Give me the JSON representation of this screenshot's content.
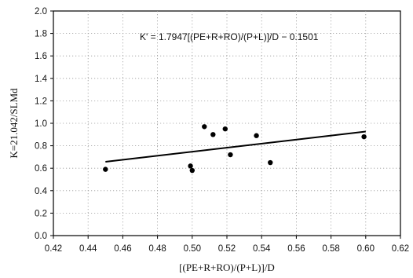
{
  "chart_data": {
    "type": "scatter",
    "title": "",
    "xlabel": "[(PE+R+RO)/(P+L)]/D",
    "ylabel": "K=21.042/SLMd",
    "xlim": [
      0.42,
      0.62
    ],
    "ylim": [
      0.0,
      2.0
    ],
    "x_ticks": [
      "0.42",
      "0.44",
      "0.46",
      "0.48",
      "0.50",
      "0.52",
      "0.54",
      "0.56",
      "0.58",
      "0.60",
      "0.62"
    ],
    "y_ticks": [
      "0.0",
      "0.2",
      "0.4",
      "0.6",
      "0.8",
      "1.0",
      "1.2",
      "1.4",
      "1.6",
      "1.8",
      "2.0"
    ],
    "grid": true,
    "annotation": "K' = 1.7947[(PE+R+RO)/(P+L)]/D − 0.1501",
    "fit_line": {
      "slope": 1.7947,
      "intercept": -0.1501,
      "x_range": [
        0.45,
        0.6
      ]
    },
    "series": [
      {
        "points": [
          {
            "x": 0.45,
            "y": 0.59
          },
          {
            "x": 0.499,
            "y": 0.62
          },
          {
            "x": 0.5,
            "y": 0.58
          },
          {
            "x": 0.507,
            "y": 0.97
          },
          {
            "x": 0.512,
            "y": 0.9
          },
          {
            "x": 0.519,
            "y": 0.95
          },
          {
            "x": 0.522,
            "y": 0.72
          },
          {
            "x": 0.537,
            "y": 0.89
          },
          {
            "x": 0.545,
            "y": 0.65
          },
          {
            "x": 0.599,
            "y": 0.88
          }
        ]
      }
    ]
  }
}
